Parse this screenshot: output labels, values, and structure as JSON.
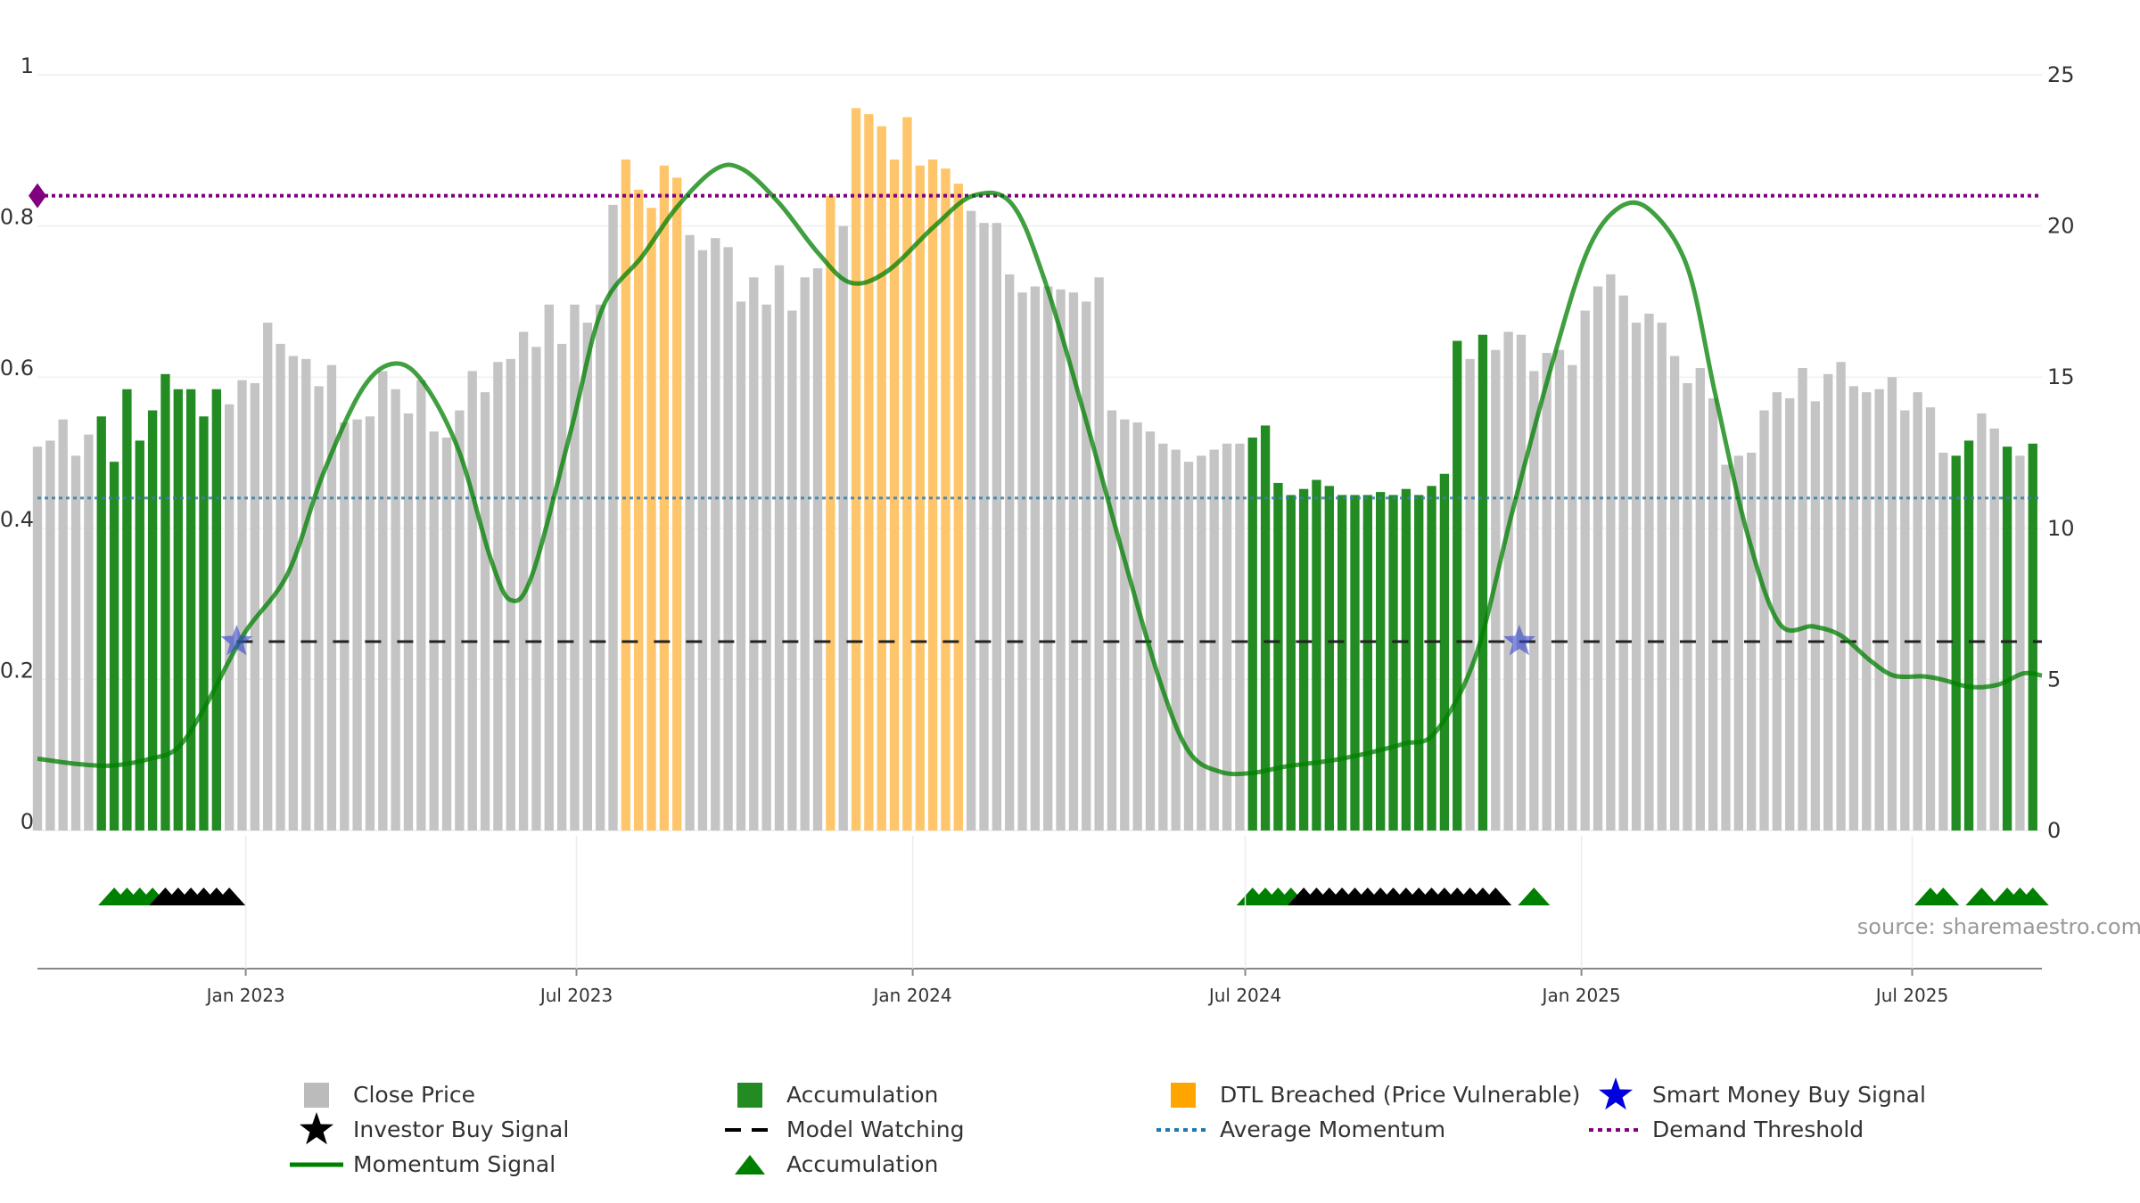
{
  "chart_data": {
    "type": "bar",
    "left_axis": {
      "ylim": [
        0,
        1
      ],
      "ticks": [
        0,
        0.2,
        0.4,
        0.6,
        0.8,
        1
      ],
      "tick_labels": [
        "0",
        "0.2",
        "0.4",
        "0.6",
        "0.8",
        "1"
      ]
    },
    "right_axis": {
      "ylim": [
        0,
        25
      ],
      "ticks": [
        0,
        5,
        10,
        15,
        20,
        25
      ],
      "tick_labels": [
        "0",
        "5",
        "10",
        "15",
        "20",
        "25"
      ]
    },
    "x_axis": {
      "type": "date",
      "range": [
        "2022-09-09",
        "2025-09-10"
      ],
      "ticks": [
        "2023-01-01",
        "2023-07-01",
        "2024-01-01",
        "2024-07-01",
        "2025-01-01",
        "2025-07-01"
      ],
      "tick_labels": [
        "Jan 2023",
        "Jul 2023",
        "Jan 2024",
        "Jul 2024",
        "Jan 2025",
        "Jul 2025"
      ]
    },
    "bar_start": "2022-09-09",
    "bar_interval_days": 7,
    "bar_values": [
      12.7,
      12.9,
      13.6,
      12.4,
      13.1,
      13.7,
      12.2,
      14.6,
      12.9,
      13.9,
      15.1,
      14.6,
      14.6,
      13.7,
      14.6,
      14.1,
      14.9,
      14.8,
      16.8,
      16.1,
      15.7,
      15.6,
      14.7,
      15.4,
      13.5,
      13.6,
      13.7,
      15.2,
      14.6,
      13.8,
      14.9,
      13.2,
      13.0,
      13.9,
      15.2,
      14.5,
      15.5,
      15.6,
      16.5,
      16.0,
      17.4,
      16.1,
      17.4,
      16.8,
      17.4,
      20.7,
      22.2,
      21.2,
      20.6,
      22.0,
      21.6,
      19.7,
      19.2,
      19.6,
      19.3,
      17.5,
      18.3,
      17.4,
      18.7,
      17.2,
      18.3,
      18.6,
      21.0,
      20.0,
      23.9,
      23.7,
      23.3,
      22.2,
      23.6,
      22.0,
      22.2,
      21.9,
      21.4,
      20.5,
      20.1,
      20.1,
      18.4,
      17.8,
      18.0,
      18.0,
      17.9,
      17.8,
      17.5,
      18.3,
      13.9,
      13.6,
      13.5,
      13.2,
      12.8,
      12.6,
      12.2,
      12.4,
      12.6,
      12.8,
      12.8,
      13.0,
      13.4,
      11.5,
      11.1,
      11.3,
      11.6,
      11.4,
      11.1,
      11.1,
      11.1,
      11.2,
      11.1,
      11.3,
      11.1,
      11.4,
      11.8,
      16.2,
      15.6,
      16.4,
      15.9,
      16.5,
      16.4,
      15.2,
      15.8,
      15.9,
      15.4,
      17.2,
      18.0,
      18.4,
      17.7,
      16.8,
      17.1,
      16.8,
      15.7,
      14.8,
      15.3,
      14.3,
      12.1,
      12.4,
      12.5,
      13.9,
      14.5,
      14.3,
      15.3,
      14.2,
      15.1,
      15.5,
      14.7,
      14.5,
      14.6,
      15.0,
      13.9,
      14.5,
      14.0,
      12.5,
      12.4,
      12.9,
      13.8,
      13.3,
      12.7,
      12.4,
      12.8
    ],
    "accumulation_bars": [
      [
        5,
        14
      ],
      [
        95,
        111
      ],
      [
        113,
        113
      ],
      [
        150,
        151
      ],
      [
        154,
        154
      ],
      [
        156,
        157
      ]
    ],
    "dtl_breached_bars": [
      [
        46,
        50
      ],
      [
        62,
        62
      ],
      [
        64,
        72
      ]
    ],
    "momentum_signal": [
      {
        "x": "2022-09-09",
        "y": 0.095
      },
      {
        "x": "2022-10-01",
        "y": 0.088
      },
      {
        "x": "2022-10-20",
        "y": 0.086
      },
      {
        "x": "2022-11-10",
        "y": 0.095
      },
      {
        "x": "2022-11-25",
        "y": 0.11
      },
      {
        "x": "2022-12-10",
        "y": 0.165
      },
      {
        "x": "2022-12-31",
        "y": 0.26
      },
      {
        "x": "2023-01-24",
        "y": 0.34
      },
      {
        "x": "2023-02-12",
        "y": 0.47
      },
      {
        "x": "2023-03-06",
        "y": 0.585
      },
      {
        "x": "2023-03-24",
        "y": 0.618
      },
      {
        "x": "2023-04-09",
        "y": 0.59
      },
      {
        "x": "2023-04-28",
        "y": 0.5
      },
      {
        "x": "2023-05-15",
        "y": 0.36
      },
      {
        "x": "2023-05-26",
        "y": 0.305
      },
      {
        "x": "2023-06-07",
        "y": 0.34
      },
      {
        "x": "2023-06-28",
        "y": 0.53
      },
      {
        "x": "2023-07-15",
        "y": 0.69
      },
      {
        "x": "2023-08-06",
        "y": 0.76
      },
      {
        "x": "2023-08-25",
        "y": 0.825
      },
      {
        "x": "2023-09-15",
        "y": 0.875
      },
      {
        "x": "2023-09-30",
        "y": 0.875
      },
      {
        "x": "2023-10-20",
        "y": 0.83
      },
      {
        "x": "2023-11-10",
        "y": 0.765
      },
      {
        "x": "2023-11-28",
        "y": 0.725
      },
      {
        "x": "2023-12-18",
        "y": 0.74
      },
      {
        "x": "2024-01-13",
        "y": 0.8
      },
      {
        "x": "2024-02-03",
        "y": 0.84
      },
      {
        "x": "2024-02-24",
        "y": 0.83
      },
      {
        "x": "2024-03-13",
        "y": 0.73
      },
      {
        "x": "2024-04-04",
        "y": 0.55
      },
      {
        "x": "2024-04-24",
        "y": 0.375
      },
      {
        "x": "2024-05-15",
        "y": 0.2
      },
      {
        "x": "2024-05-31",
        "y": 0.105
      },
      {
        "x": "2024-06-17",
        "y": 0.078
      },
      {
        "x": "2024-07-04",
        "y": 0.076
      },
      {
        "x": "2024-07-24",
        "y": 0.085
      },
      {
        "x": "2024-08-18",
        "y": 0.093
      },
      {
        "x": "2024-09-07",
        "y": 0.103
      },
      {
        "x": "2024-09-26",
        "y": 0.115
      },
      {
        "x": "2024-10-13",
        "y": 0.13
      },
      {
        "x": "2024-11-04",
        "y": 0.23
      },
      {
        "x": "2024-11-24",
        "y": 0.42
      },
      {
        "x": "2024-12-15",
        "y": 0.61
      },
      {
        "x": "2025-01-04",
        "y": 0.765
      },
      {
        "x": "2025-01-22",
        "y": 0.825
      },
      {
        "x": "2025-02-08",
        "y": 0.82
      },
      {
        "x": "2025-02-28",
        "y": 0.745
      },
      {
        "x": "2025-03-15",
        "y": 0.58
      },
      {
        "x": "2025-04-01",
        "y": 0.4
      },
      {
        "x": "2025-04-19",
        "y": 0.275
      },
      {
        "x": "2025-05-08",
        "y": 0.27
      },
      {
        "x": "2025-05-23",
        "y": 0.258
      },
      {
        "x": "2025-06-08",
        "y": 0.225
      },
      {
        "x": "2025-06-21",
        "y": 0.205
      },
      {
        "x": "2025-07-07",
        "y": 0.204
      },
      {
        "x": "2025-07-17",
        "y": 0.2
      },
      {
        "x": "2025-08-02",
        "y": 0.19
      },
      {
        "x": "2025-08-17",
        "y": 0.193
      },
      {
        "x": "2025-08-31",
        "y": 0.208
      },
      {
        "x": "2025-09-10",
        "y": 0.205
      }
    ],
    "average_momentum": 0.44,
    "demand_threshold": 0.84,
    "model_watching": {
      "y": 0.25,
      "ranges": [
        [
          "2022-12-27",
          "2024-11-28"
        ],
        [
          "2024-11-28",
          "2025-09-10"
        ]
      ]
    },
    "smart_money_buy_signals": [
      {
        "x": "2022-12-27",
        "y": 0.25
      },
      {
        "x": "2024-11-28",
        "y": 0.25
      }
    ],
    "signal_triangles": {
      "accumulation": [
        "2022-10-21",
        "2022-10-28",
        "2022-11-04",
        "2022-11-11",
        "2024-07-05",
        "2024-07-12",
        "2024-07-19",
        "2024-07-26",
        "2024-12-06",
        "2025-07-11",
        "2025-07-18",
        "2025-08-08",
        "2025-08-22",
        "2025-08-29",
        "2025-09-05"
      ],
      "investor_buy": [
        "2022-11-18",
        "2022-11-25",
        "2022-12-02",
        "2022-12-09",
        "2022-12-16",
        "2022-12-23",
        "2024-08-02",
        "2024-08-09",
        "2024-08-16",
        "2024-08-23",
        "2024-08-30",
        "2024-09-06",
        "2024-09-13",
        "2024-09-20",
        "2024-09-27",
        "2024-10-04",
        "2024-10-11",
        "2024-10-18",
        "2024-10-25",
        "2024-11-01",
        "2024-11-08",
        "2024-11-15"
      ]
    },
    "legend": {
      "position": "bottom",
      "items": [
        {
          "label": "Close Price",
          "marker": "square",
          "color": "#bbbbbb"
        },
        {
          "label": "Accumulation",
          "marker": "square",
          "color": "#228b22"
        },
        {
          "label": "DTL Breached (Price Vulnerable)",
          "marker": "square",
          "color": "#ffa500"
        },
        {
          "label": "Smart Money Buy Signal",
          "marker": "star",
          "color": "#0000dd"
        },
        {
          "label": "Investor Buy Signal",
          "marker": "star",
          "color": "#000000"
        },
        {
          "label": "Model Watching",
          "marker": "dash",
          "color": "#000000"
        },
        {
          "label": "Average Momentum",
          "marker": "dot",
          "color": "#1f77b4"
        },
        {
          "label": "Demand Threshold",
          "marker": "dot",
          "color": "#800080"
        },
        {
          "label": "Momentum Signal",
          "marker": "line",
          "color": "#008000"
        },
        {
          "label": "Accumulation",
          "marker": "triangle",
          "color": "#008000"
        }
      ]
    },
    "annotation": "source: sharemaestro.com",
    "colors": {
      "close_price": "#c4c4c4",
      "accumulation": "#228b22",
      "dtl_breached": "#ffc56b",
      "momentum": "#008000",
      "average_momentum": "#3d7ea6",
      "demand_threshold": "#800080",
      "smart_money": "#3344cc",
      "grid": "#e8e8e8"
    },
    "grid": true
  }
}
